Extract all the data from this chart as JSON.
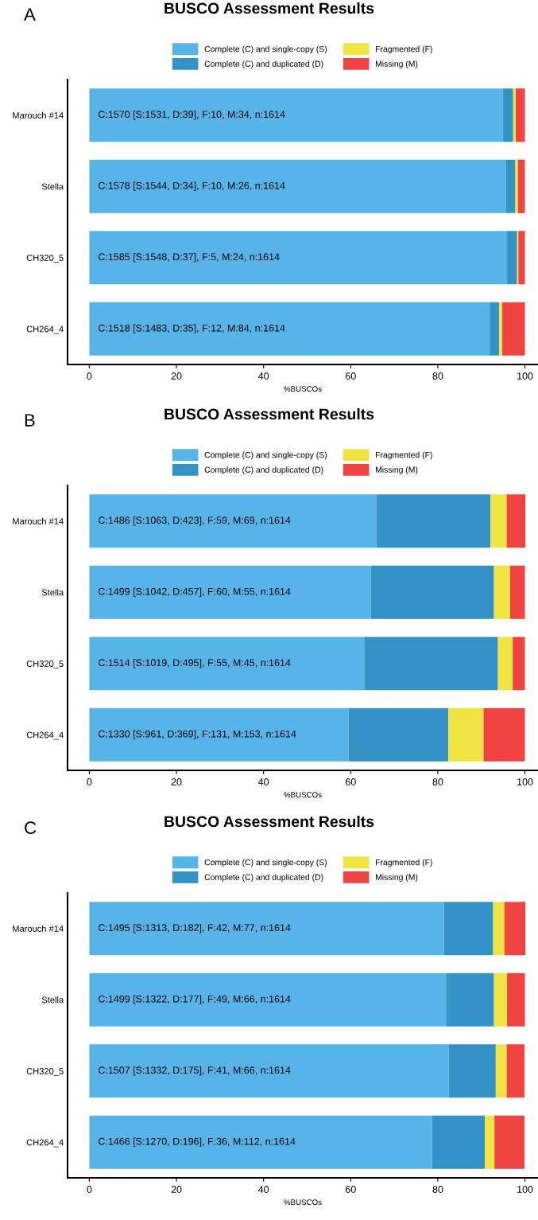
{
  "chart_data": [
    {
      "type": "bar",
      "orientation": "horizontal",
      "stacked": true,
      "title": "BUSCO Assessment Results",
      "xlabel": "%BUSCOs",
      "legend": "top",
      "grid": false,
      "categories": [
        "Marouch #14",
        "Stella",
        "CH320_5",
        "CH264_4"
      ],
      "xlim": [
        -5,
        103
      ],
      "xticks": [
        0,
        20,
        40,
        60,
        80,
        100
      ],
      "series": [
        {
          "name": "Complete (C) and single-copy (S)",
          "color": "#56b4e9",
          "values": [
            94.9,
            95.7,
            95.9,
            91.9
          ]
        },
        {
          "name": "Complete (C) and duplicated (D)",
          "color": "#3492c7",
          "values": [
            2.4,
            2.1,
            2.3,
            2.2
          ]
        },
        {
          "name": "Fragmented (F)",
          "color": "#f0e442",
          "values": [
            0.6,
            0.6,
            0.3,
            0.7
          ]
        },
        {
          "name": "Missing (M)",
          "color": "#f04442",
          "values": [
            2.1,
            1.6,
            1.5,
            5.2
          ]
        }
      ],
      "annotations": [
        "A",
        "C:1570 [S:1531, D:39], F:10, M:34, n:1614",
        "C:1578 [S:1544, D:34], F:10, M:26, n:1614",
        "C:1585 [S:1548, D:37], F:5, M:24, n:1614",
        "C:1518 [S:1483, D:35], F:12, M:84, n:1614"
      ]
    },
    {
      "type": "bar",
      "orientation": "horizontal",
      "stacked": true,
      "title": "BUSCO Assessment Results",
      "xlabel": "%BUSCOs",
      "legend": "top",
      "grid": false,
      "categories": [
        "Marouch #14",
        "Stella",
        "CH320_5",
        "CH264_4"
      ],
      "xlim": [
        -5,
        103
      ],
      "xticks": [
        0,
        20,
        40,
        60,
        80,
        100
      ],
      "series": [
        {
          "name": "Complete (C) and single-copy (S)",
          "color": "#56b4e9",
          "values": [
            65.9,
            64.6,
            63.1,
            59.5
          ]
        },
        {
          "name": "Complete (C) and duplicated (D)",
          "color": "#3492c7",
          "values": [
            26.2,
            28.3,
            30.7,
            22.9
          ]
        },
        {
          "name": "Fragmented (F)",
          "color": "#f0e442",
          "values": [
            3.7,
            3.7,
            3.4,
            8.1
          ]
        },
        {
          "name": "Missing (M)",
          "color": "#f04442",
          "values": [
            4.3,
            3.4,
            2.8,
            9.5
          ]
        }
      ],
      "annotations": [
        "B",
        "C:1486 [S:1063, D:423], F:59, M:69, n:1614",
        "C:1499 [S:1042, D:457], F:60, M:55, n:1614",
        "C:1514 [S:1019, D:495], F:55, M:45, n:1614",
        "C:1330 [S:961, D:369], F:131, M:153, n:1614"
      ]
    },
    {
      "type": "bar",
      "orientation": "horizontal",
      "stacked": true,
      "title": "BUSCO Assessment Results",
      "xlabel": "%BUSCOs",
      "legend": "top",
      "grid": false,
      "categories": [
        "Marouch #14",
        "Stella",
        "CH320_5",
        "CH264_4"
      ],
      "xlim": [
        -5,
        103
      ],
      "xticks": [
        0,
        20,
        40,
        60,
        80,
        100
      ],
      "series": [
        {
          "name": "Complete (C) and single-copy (S)",
          "color": "#56b4e9",
          "values": [
            81.4,
            81.9,
            82.5,
            78.7
          ]
        },
        {
          "name": "Complete (C) and duplicated (D)",
          "color": "#3492c7",
          "values": [
            11.3,
            11.0,
            10.8,
            12.1
          ]
        },
        {
          "name": "Fragmented (F)",
          "color": "#f0e442",
          "values": [
            2.6,
            3.0,
            2.5,
            2.2
          ]
        },
        {
          "name": "Missing (M)",
          "color": "#f04442",
          "values": [
            4.8,
            4.1,
            4.1,
            6.9
          ]
        }
      ],
      "annotations": [
        "C",
        "C:1495 [S:1313, D:182], F:42, M:77, n:1614",
        "C:1499 [S:1322, D:177], F:49, M:66, n:1614",
        "C:1507 [S:1332, D:175], F:41, M:66, n:1614",
        "C:1466 [S:1270, D:196], F:36, M:112, n:1614"
      ]
    }
  ]
}
